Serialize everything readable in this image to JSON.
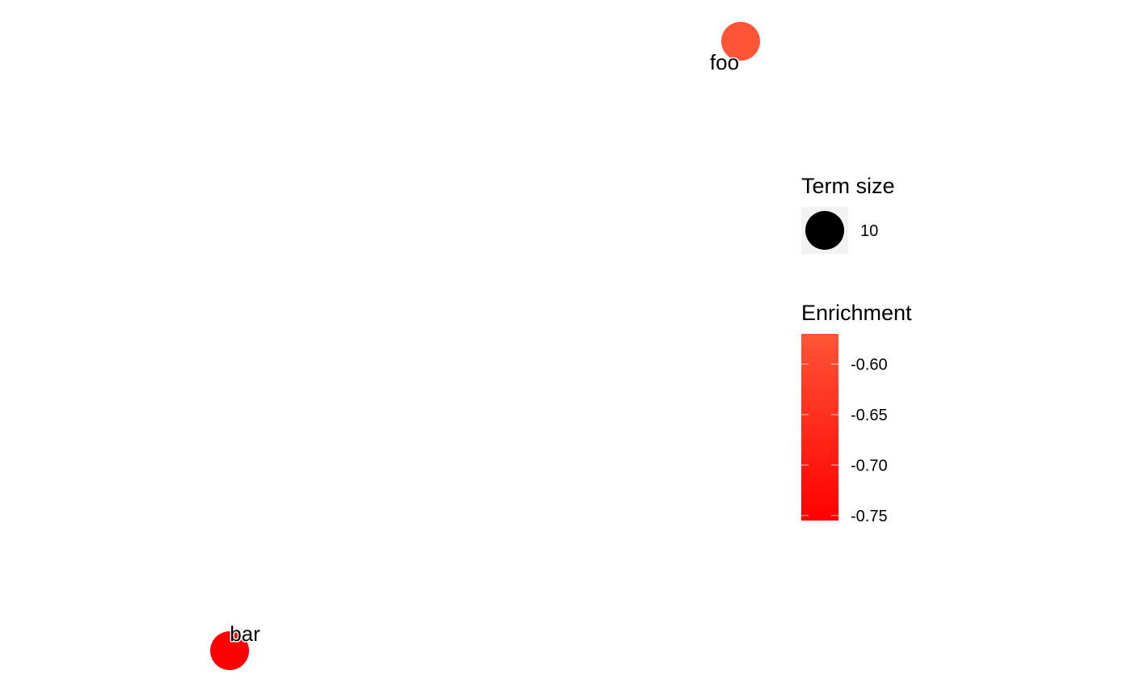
{
  "chart_data": {
    "type": "scatter",
    "title": "",
    "xlabel": "",
    "ylabel": "",
    "grid": false,
    "axes_visible": false,
    "legend_position": "right",
    "nodes": [
      {
        "label": "foo",
        "enrichment": -0.57,
        "term_size": 10,
        "color": "#FF5536"
      },
      {
        "label": "bar",
        "enrichment": -0.75,
        "term_size": 10,
        "color": "#FF0000"
      }
    ],
    "legend_size": {
      "title": "Term size",
      "entries": [
        {
          "value": 10,
          "label": "10"
        }
      ],
      "key_color": "#000000"
    },
    "legend_color": {
      "title": "Enrichment",
      "range": [
        -0.755,
        -0.57
      ],
      "low_color": "#FF0000",
      "high_color": "#FF5536",
      "ticks": [
        {
          "value": -0.6,
          "label": "-0.60"
        },
        {
          "value": -0.65,
          "label": "-0.65"
        },
        {
          "value": -0.7,
          "label": "-0.70"
        },
        {
          "value": -0.75,
          "label": "-0.75"
        }
      ]
    }
  }
}
